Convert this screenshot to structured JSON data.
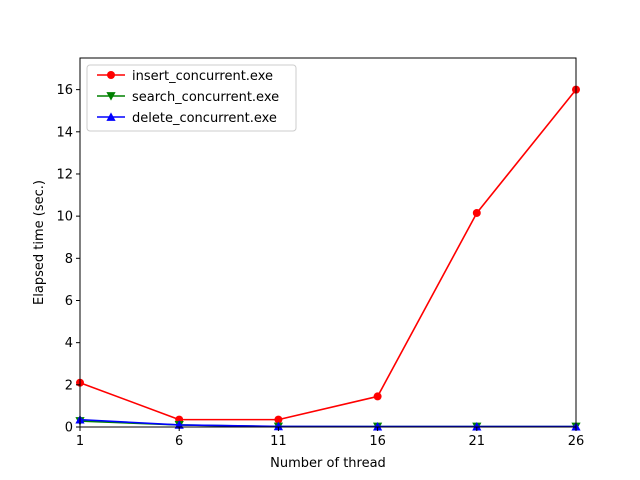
{
  "chart_data": {
    "type": "line",
    "title": "",
    "xlabel": "Number of thread",
    "ylabel": "Elapsed time (sec.)",
    "x": [
      1,
      6,
      11,
      16,
      21,
      26
    ],
    "x_tick_labels": [
      "1",
      "6",
      "11",
      "16",
      "21",
      "26"
    ],
    "xlim": [
      1,
      26
    ],
    "y_ticks": [
      0,
      2,
      4,
      6,
      8,
      10,
      12,
      14,
      16
    ],
    "y_tick_labels": [
      "0",
      "2",
      "4",
      "6",
      "8",
      "10",
      "12",
      "14",
      "16"
    ],
    "ylim": [
      0,
      17.5
    ],
    "grid": false,
    "legend_position": "upper-left",
    "series": [
      {
        "name": "insert_concurrent.exe",
        "color": "#ff0000",
        "marker": "circle",
        "values": [
          2.1,
          0.35,
          0.35,
          1.45,
          10.15,
          16.0
        ]
      },
      {
        "name": "search_concurrent.exe",
        "color": "#008000",
        "marker": "triangle-down",
        "values": [
          0.28,
          0.1,
          0.02,
          0.02,
          0.02,
          0.02
        ]
      },
      {
        "name": "delete_concurrent.exe",
        "color": "#0000ff",
        "marker": "triangle-up",
        "values": [
          0.35,
          0.1,
          0.03,
          0.02,
          0.02,
          0.02
        ]
      }
    ]
  }
}
